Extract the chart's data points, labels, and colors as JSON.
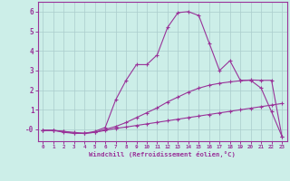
{
  "xlabel": "Windchill (Refroidissement éolien,°C)",
  "background_color": "#cceee8",
  "grid_color": "#aacccc",
  "line_color": "#993399",
  "xlim": [
    -0.5,
    23.5
  ],
  "ylim": [
    -0.6,
    6.5
  ],
  "xticks": [
    0,
    1,
    2,
    3,
    4,
    5,
    6,
    7,
    8,
    9,
    10,
    11,
    12,
    13,
    14,
    15,
    16,
    17,
    18,
    19,
    20,
    21,
    22,
    23
  ],
  "yticks": [
    0,
    1,
    2,
    3,
    4,
    5,
    6
  ],
  "series1_x": [
    0,
    1,
    2,
    3,
    4,
    5,
    6,
    7,
    8,
    9,
    10,
    11,
    12,
    13,
    14,
    15,
    16,
    17,
    18,
    19,
    20,
    21,
    22,
    23
  ],
  "series1_y": [
    -0.05,
    -0.05,
    -0.1,
    -0.2,
    -0.2,
    -0.15,
    -0.05,
    0.05,
    0.12,
    0.2,
    0.28,
    0.36,
    0.44,
    0.52,
    0.6,
    0.68,
    0.76,
    0.84,
    0.92,
    1.0,
    1.08,
    1.16,
    1.24,
    1.32
  ],
  "series2_x": [
    0,
    1,
    2,
    3,
    4,
    5,
    6,
    7,
    8,
    9,
    10,
    11,
    12,
    13,
    14,
    15,
    16,
    17,
    18,
    19,
    20,
    21,
    22,
    23
  ],
  "series2_y": [
    -0.05,
    -0.05,
    -0.1,
    -0.15,
    -0.2,
    -0.15,
    0.0,
    0.15,
    0.35,
    0.6,
    0.85,
    1.1,
    1.4,
    1.65,
    1.9,
    2.1,
    2.25,
    2.35,
    2.42,
    2.48,
    2.52,
    2.5,
    2.5,
    -0.35
  ],
  "series3_x": [
    0,
    1,
    2,
    3,
    4,
    5,
    6,
    7,
    8,
    9,
    10,
    11,
    12,
    13,
    14,
    15,
    16,
    17,
    18,
    19,
    20,
    21,
    22,
    23
  ],
  "series3_y": [
    -0.05,
    -0.05,
    -0.15,
    -0.2,
    -0.2,
    -0.1,
    0.1,
    1.5,
    2.5,
    3.3,
    3.3,
    3.8,
    5.2,
    5.95,
    6.0,
    5.8,
    4.4,
    3.0,
    3.5,
    2.5,
    2.5,
    2.1,
    0.9,
    -0.35
  ],
  "marker": "+",
  "markersize": 3,
  "linewidth": 0.8
}
